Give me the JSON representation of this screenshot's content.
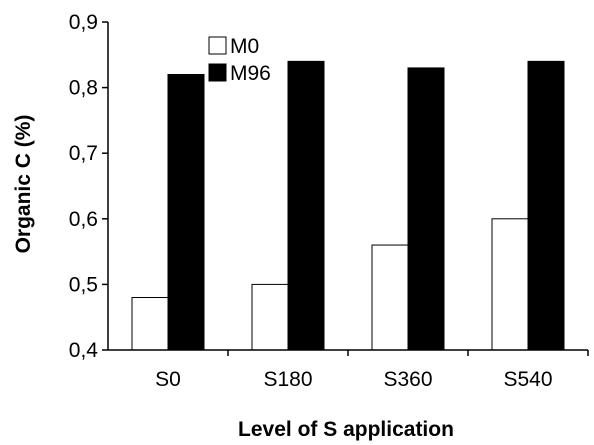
{
  "chart_data": {
    "type": "bar",
    "categories": [
      "S0",
      "S180",
      "S360",
      "S540"
    ],
    "series": [
      {
        "name": "M0",
        "values": [
          0.48,
          0.5,
          0.56,
          0.6
        ],
        "color": "#ffffff"
      },
      {
        "name": "M96",
        "values": [
          0.82,
          0.84,
          0.83,
          0.84
        ],
        "color": "#000000"
      }
    ],
    "title": "",
    "xlabel": "Level of S application",
    "ylabel": "Organic C (%)",
    "ylim": [
      0.4,
      0.9
    ],
    "yticks": [
      "0,4",
      "0,5",
      "0,6",
      "0,7",
      "0,8",
      "0,9"
    ],
    "grid": false,
    "legend_position": "top-center"
  }
}
